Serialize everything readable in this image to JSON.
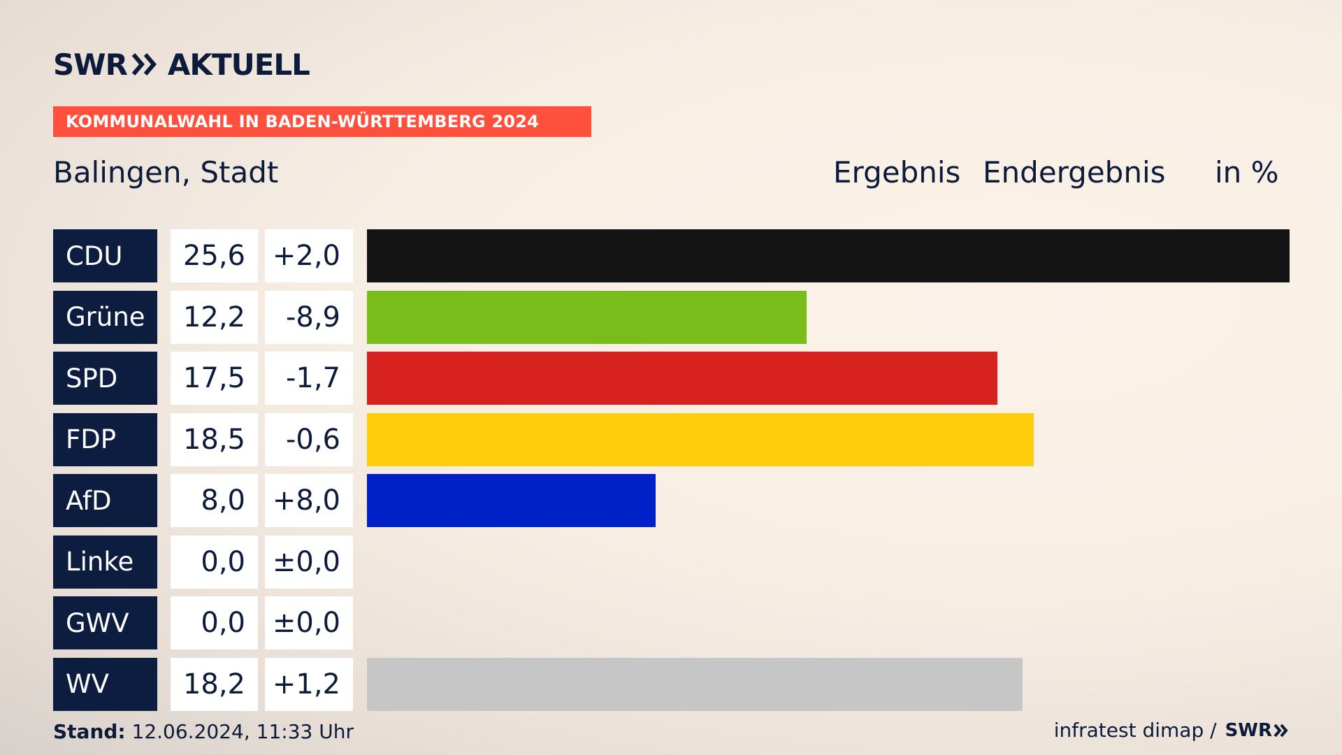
{
  "header": {
    "logo_brand": "SWR",
    "logo_name": "AKTUELL",
    "banner": "KOMMUNALWAHL IN BADEN-WÜRTTEMBERG 2024",
    "location": "Balingen, Stadt",
    "col_ergebnis": "Ergebnis",
    "col_endergebnis": "Endergebnis",
    "col_unit": "in %"
  },
  "chart_data": {
    "type": "bar",
    "orientation": "horizontal",
    "title": "Balingen, Stadt",
    "xlim": [
      0,
      25.6
    ],
    "categories": [
      "CDU",
      "Grüne",
      "SPD",
      "FDP",
      "AfD",
      "Linke",
      "GWV",
      "WV"
    ],
    "values": [
      25.6,
      12.2,
      17.5,
      18.5,
      8.0,
      0.0,
      0.0,
      18.2
    ],
    "value_labels": [
      "25,6",
      "12,2",
      "17,5",
      "18,5",
      "8,0",
      "0,0",
      "0,0",
      "18,2"
    ],
    "diff_labels": [
      "+2,0",
      "-8,9",
      "-1,7",
      "-0,6",
      "+8,0",
      "±0,0",
      "±0,0",
      "+1,2"
    ],
    "colors": [
      "#141414",
      "#79bd1c",
      "#d7211e",
      "#ffcd0b",
      "#0020c8",
      "#be3075",
      "#9c9c9c",
      "#c6c6c6"
    ]
  },
  "footer": {
    "stand_label": "Stand:",
    "stand_value": " 12.06.2024, 11:33 Uhr",
    "source": "infratest dimap /",
    "source_logo": "SWR"
  }
}
